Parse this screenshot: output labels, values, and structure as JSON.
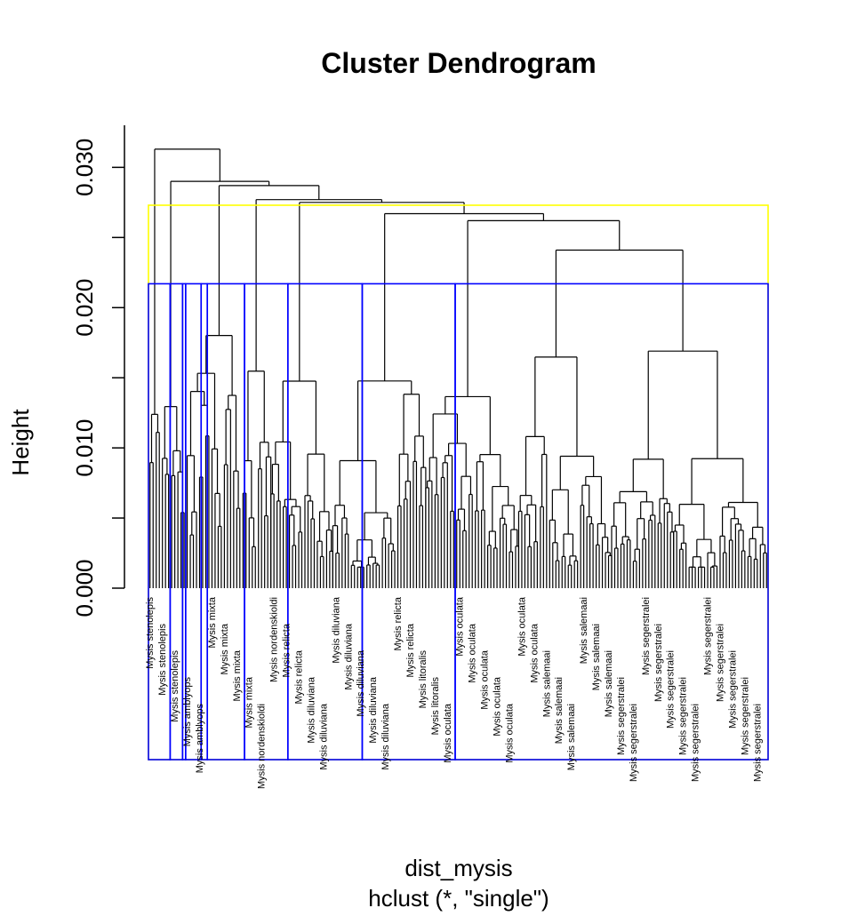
{
  "chart_data": {
    "type": "dendrogram",
    "title": "Cluster Dendrogram",
    "ylabel": "Height",
    "xlabel": "dist_mysis",
    "sublabel": "hclust (*, \"single\")",
    "ylim": [
      0,
      0.033
    ],
    "y_ticks": [
      0.0,
      0.005,
      0.01,
      0.015,
      0.02,
      0.025,
      0.03
    ],
    "y_tick_labels": [
      {
        "value": 0.0,
        "label": "0.000"
      },
      {
        "value": 0.01,
        "label": "0.010"
      },
      {
        "value": 0.02,
        "label": "0.020"
      },
      {
        "value": 0.03,
        "label": "0.030"
      }
    ],
    "leaf_count": 200,
    "cluster_boxes": [
      {
        "cut_height": 0.0273,
        "color": "#ffff00",
        "groups": [
          [
            1,
            200
          ]
        ]
      },
      {
        "cut_height": 0.0217,
        "color": "#0000ff",
        "groups": [
          [
            1,
            7
          ],
          [
            8,
            11
          ],
          [
            12,
            12
          ],
          [
            13,
            17
          ],
          [
            18,
            19
          ],
          [
            20,
            31
          ],
          [
            32,
            45
          ],
          [
            46,
            69
          ],
          [
            70,
            99
          ],
          [
            100,
            200
          ]
        ]
      }
    ],
    "merge_heights": [
      {
        "leaves": [
          1,
          4
        ],
        "height": 0.0313
      },
      {
        "leaves": [
          5,
          12
        ],
        "height": 0.029
      },
      {
        "leaves": [
          13,
          30
        ],
        "height": 0.0287
      },
      {
        "leaves": [
          31,
          40
        ],
        "height": 0.0277
      },
      {
        "leaves": [
          40,
          60
        ],
        "height": 0.0275
      },
      {
        "leaves": [
          60,
          90
        ],
        "height": 0.0267
      },
      {
        "leaves": [
          90,
          120
        ],
        "height": 0.0262
      },
      {
        "leaves": [
          120,
          150
        ],
        "height": 0.0241
      },
      {
        "leaves": [
          150,
          170
        ],
        "height": 0.0169
      },
      {
        "leaves": [
          170,
          200
        ],
        "height": 0.0149
      }
    ],
    "visible_leaf_labels": [
      "Mysis stenolepis",
      "Mysis stenolepis",
      "Mysis stenolepis",
      "Mysis amblyops",
      "Mysis amblyops",
      "Mysis mixta",
      "Mysis mixta",
      "Mysis mixta",
      "Mysis mixta",
      "Mysis nordenskioldi",
      "Mysis nordenskioldi",
      "Mysis relicta",
      "Mysis relicta",
      "Mysis diluviana",
      "Mysis diluviana",
      "Mysis diluviana",
      "Mysis diluviana",
      "Mysis diluviana",
      "Mysis diluviana",
      "Mysis diluviana",
      "Mysis relicta",
      "Mysis relicta",
      "Mysis litoralis",
      "Mysis litoralis",
      "Mysis oculata",
      "Mysis oculata",
      "Mysis oculata",
      "Mysis oculata",
      "Mysis oculata",
      "Mysis oculata",
      "Mysis oculata",
      "Mysis oculata",
      "Mysis salemaai",
      "Mysis salemaai",
      "Mysis salemaai",
      "Mysis salemaai",
      "Mysis salemaai",
      "Mysis salemaai",
      "Mysis segerstralei",
      "Mysis segerstralei",
      "Mysis segerstralei",
      "Mysis segerstralei",
      "Mysis segerstralei",
      "Mysis segerstralei",
      "Mysis segerstralei",
      "Mysis segerstralei",
      "Mysis segerstralei",
      "Mysis segerstralei",
      "Mysis segerstralei",
      "Mysis segerstralei"
    ]
  }
}
